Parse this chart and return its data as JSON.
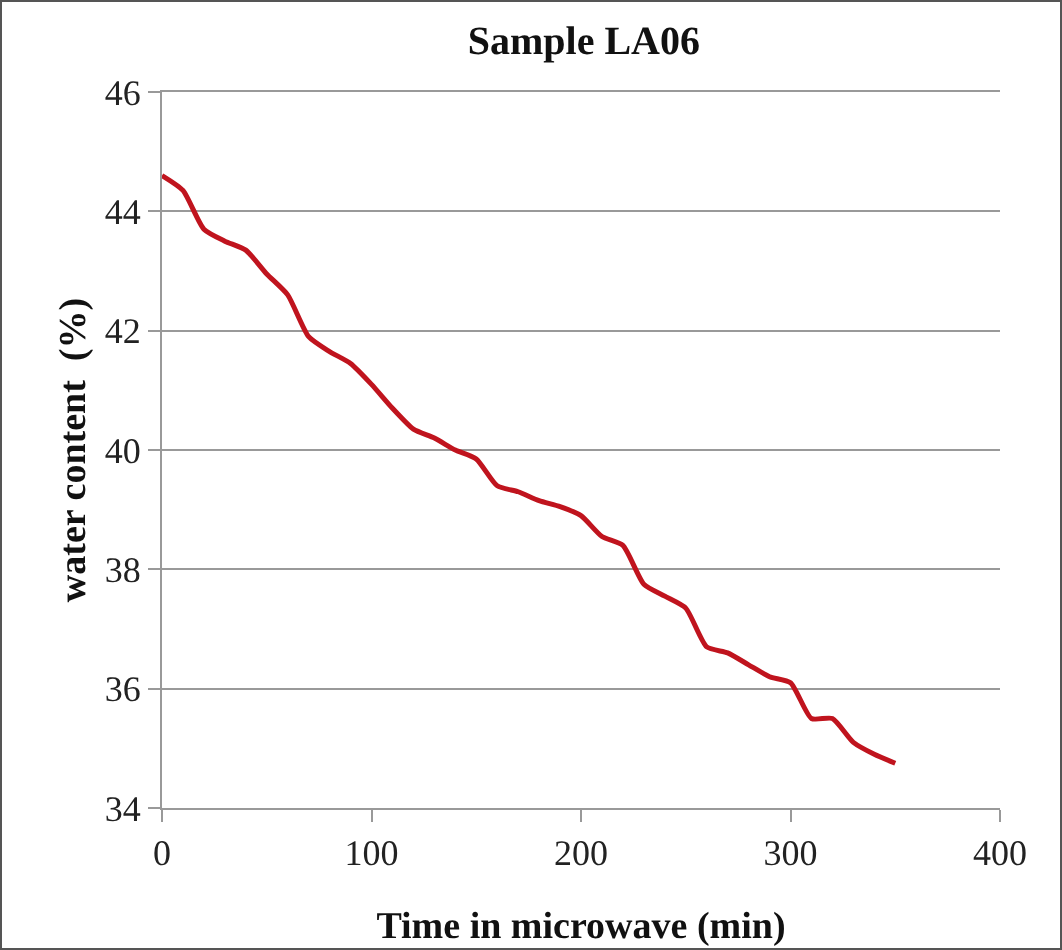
{
  "chart_data": {
    "type": "line",
    "title": "Sample LA06",
    "xlabel": "Time in microwave (min)",
    "ylabel": "water content  (%)",
    "x": [
      0,
      10,
      20,
      30,
      40,
      50,
      60,
      70,
      80,
      90,
      100,
      110,
      120,
      130,
      140,
      150,
      160,
      170,
      180,
      190,
      200,
      210,
      220,
      230,
      240,
      250,
      260,
      270,
      280,
      290,
      300,
      310,
      320,
      330,
      340,
      350
    ],
    "series": [
      {
        "color": "#c0141e",
        "values": [
          44.6,
          44.35,
          43.7,
          43.5,
          43.35,
          42.95,
          42.6,
          41.9,
          41.65,
          41.45,
          41.1,
          40.7,
          40.35,
          40.2,
          40.0,
          39.85,
          39.4,
          39.3,
          39.15,
          39.05,
          38.9,
          38.55,
          38.4,
          37.75,
          37.55,
          37.35,
          36.7,
          36.6,
          36.4,
          36.2,
          36.1,
          35.5,
          35.5,
          35.1,
          34.9,
          34.75
        ]
      }
    ],
    "xlim": [
      0,
      400
    ],
    "xticks": [
      0,
      100,
      200,
      300,
      400
    ],
    "ylim": [
      34,
      46
    ],
    "yticks": [
      34,
      36,
      38,
      40,
      42,
      44,
      46
    ],
    "grid": "y",
    "marker": "none",
    "line_style": "solid"
  }
}
